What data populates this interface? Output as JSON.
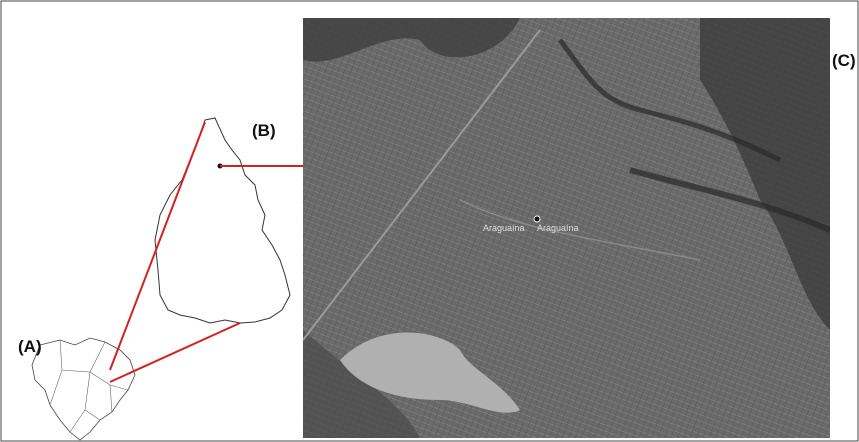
{
  "labels": {
    "a": "(A)",
    "b": "(B)",
    "c": "(C)"
  },
  "map_labels": [
    "Araguaína",
    "Araguaína"
  ]
}
